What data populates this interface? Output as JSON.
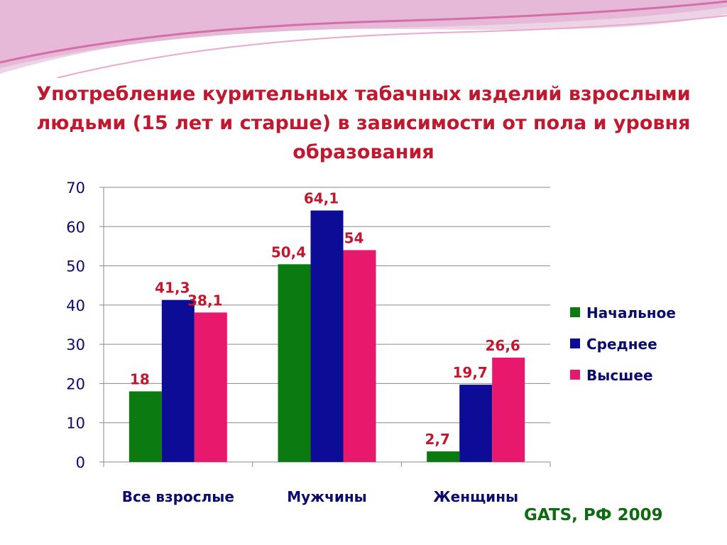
{
  "title": "Употребление курительных табачных изделий взрослыми людьми (15 лет и старше) в зависимости от пола и уровня образования",
  "source": "GATS, РФ 2009",
  "colors": {
    "title": "#C0182F",
    "data_label": "#C0182F",
    "axis_text": "#0B0B6E",
    "source": "#0E6B12"
  },
  "chart_data": {
    "type": "bar",
    "title": "Употребление курительных табачных изделий взрослыми людьми (15 лет и старше) в зависимости от пола и уровня образования",
    "xlabel": "",
    "ylabel": "",
    "categories": [
      "Все взрослые",
      "Мужчины",
      "Женщины"
    ],
    "series": [
      {
        "name": "Начальное",
        "color": "#0B7A10",
        "values": [
          18,
          50.4,
          2.7
        ],
        "labels": [
          "18",
          "50,4",
          "2,7"
        ]
      },
      {
        "name": "Среднее",
        "color": "#0C0C96",
        "values": [
          41.3,
          64.1,
          19.7
        ],
        "labels": [
          "41,3",
          "64,1",
          "19,7"
        ]
      },
      {
        "name": "Высшее",
        "color": "#E8186D",
        "values": [
          38.1,
          54,
          26.6
        ],
        "labels": [
          "38,1",
          "54",
          "26,6"
        ]
      }
    ],
    "ylim": [
      0,
      70
    ],
    "yticks": [
      0,
      10,
      20,
      30,
      40,
      50,
      60,
      70
    ],
    "ytick_labels": [
      "0",
      "10",
      "20",
      "30",
      "40",
      "50",
      "60",
      "70"
    ],
    "grid": true,
    "legend": "right"
  }
}
